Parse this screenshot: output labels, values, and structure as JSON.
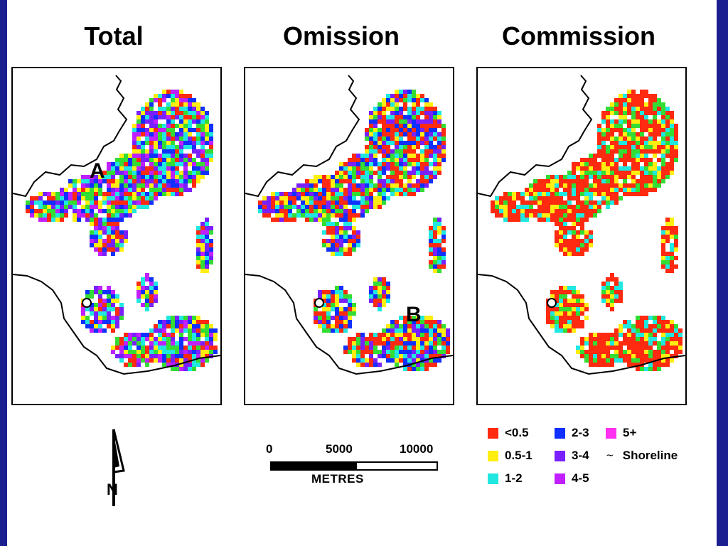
{
  "titles": {
    "total": "Total",
    "omission": "Omission",
    "commission": "Commission"
  },
  "markers": {
    "a": "A",
    "b": "B"
  },
  "scale": {
    "tick_0": "0",
    "tick_mid": "5000",
    "tick_max": "10000",
    "units": "METRES"
  },
  "north_label": "N",
  "legend": {
    "items": [
      {
        "label": "<0.5",
        "color": "#ff2a10"
      },
      {
        "label": "0.5-1",
        "color": "#ffee10"
      },
      {
        "label": "1-2",
        "color": "#20e8e0"
      },
      {
        "label": "2-3",
        "color": "#1030ff"
      },
      {
        "label": "3-4",
        "color": "#7a20ff"
      },
      {
        "label": "4-5",
        "color": "#c020ff"
      },
      {
        "label": "5+",
        "color": "#ff30f0"
      }
    ],
    "shoreline_glyph": "~",
    "shoreline_label": "Shoreline"
  },
  "panel_palettes": {
    "total": [
      "#ff2a10",
      "#ffee10",
      "#20e8e0",
      "#1030ff",
      "#7a20ff",
      "#c020ff",
      "#33dd33"
    ],
    "omission": [
      "#ff2a10",
      "#ff2a10",
      "#ffee10",
      "#20e8e0",
      "#1030ff",
      "#7a20ff",
      "#33dd33"
    ],
    "commission": [
      "#ff2a10",
      "#ff2a10",
      "#ff2a10",
      "#ff2a10",
      "#ffee10",
      "#20e8e0",
      "#33dd33"
    ]
  }
}
